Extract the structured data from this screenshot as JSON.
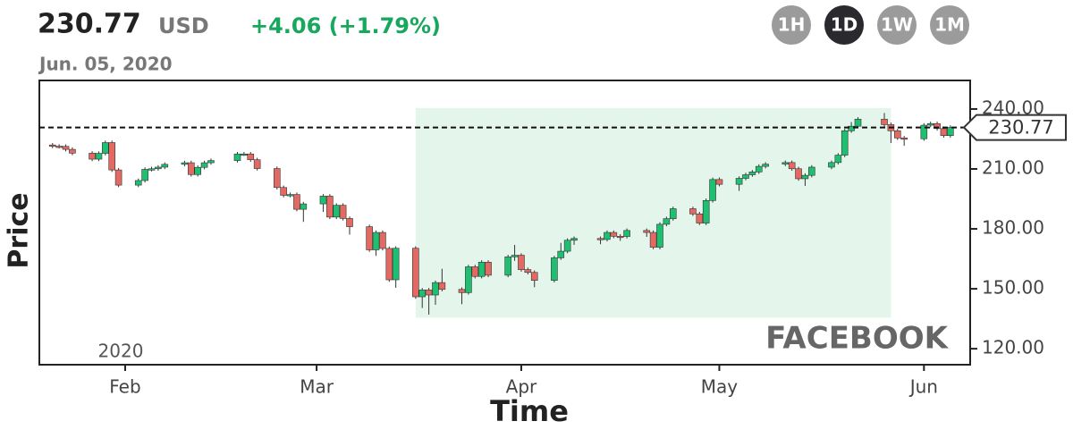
{
  "header": {
    "price": "230.77",
    "currency": "USD",
    "change": "+4.06 (+1.79%)",
    "date": "Jun. 05, 2020"
  },
  "range_buttons": [
    "1H",
    "1D",
    "1W",
    "1M"
  ],
  "active_range": "1D",
  "chart_data": {
    "type": "candlestick",
    "x_title": "Time",
    "y_title": "Price",
    "watermark": "FACEBOOK",
    "year_label": "2020",
    "up_color": "#1fbf72",
    "down_color": "#e36a62",
    "highlight_color": "#e4f5ec",
    "xlim": [
      "2020-01-19",
      "2020-06-08"
    ],
    "ylim": [
      112,
      254.3
    ],
    "xticks": [
      {
        "value": "2020-02-01",
        "label": "Feb"
      },
      {
        "value": "2020-03-01",
        "label": "Mar"
      },
      {
        "value": "2020-04-01",
        "label": "Apr"
      },
      {
        "value": "2020-05-01",
        "label": "May"
      },
      {
        "value": "2020-06-01",
        "label": "Jun"
      }
    ],
    "yticks": [
      {
        "value": 120,
        "label": "120.00"
      },
      {
        "value": 150,
        "label": "150.00"
      },
      {
        "value": 180,
        "label": "180.00"
      },
      {
        "value": 210,
        "label": "210.00"
      },
      {
        "value": 240,
        "label": "240.00"
      }
    ],
    "highlight": {
      "x": [
        "2020-03-16",
        "2020-05-27"
      ],
      "y": [
        135.5,
        240.5
      ]
    },
    "reference_line": {
      "value": 230.77,
      "label": "230.77"
    },
    "x": [
      "2020-01-21",
      "2020-01-22",
      "2020-01-23",
      "2020-01-24",
      "2020-01-27",
      "2020-01-28",
      "2020-01-29",
      "2020-01-30",
      "2020-01-31",
      "2020-02-03",
      "2020-02-04",
      "2020-02-05",
      "2020-02-06",
      "2020-02-07",
      "2020-02-10",
      "2020-02-11",
      "2020-02-12",
      "2020-02-13",
      "2020-02-14",
      "2020-02-18",
      "2020-02-19",
      "2020-02-20",
      "2020-02-21",
      "2020-02-24",
      "2020-02-25",
      "2020-02-26",
      "2020-02-27",
      "2020-02-28",
      "2020-03-02",
      "2020-03-03",
      "2020-03-04",
      "2020-03-05",
      "2020-03-06",
      "2020-03-09",
      "2020-03-10",
      "2020-03-11",
      "2020-03-12",
      "2020-03-13",
      "2020-03-16",
      "2020-03-17",
      "2020-03-18",
      "2020-03-19",
      "2020-03-20",
      "2020-03-23",
      "2020-03-24",
      "2020-03-25",
      "2020-03-26",
      "2020-03-27",
      "2020-03-30",
      "2020-03-31",
      "2020-04-01",
      "2020-04-02",
      "2020-04-03",
      "2020-04-06",
      "2020-04-07",
      "2020-04-08",
      "2020-04-09",
      "2020-04-13",
      "2020-04-14",
      "2020-04-15",
      "2020-04-16",
      "2020-04-17",
      "2020-04-20",
      "2020-04-21",
      "2020-04-22",
      "2020-04-23",
      "2020-04-24",
      "2020-04-27",
      "2020-04-28",
      "2020-04-29",
      "2020-04-30",
      "2020-05-01",
      "2020-05-04",
      "2020-05-05",
      "2020-05-06",
      "2020-05-07",
      "2020-05-08",
      "2020-05-11",
      "2020-05-12",
      "2020-05-13",
      "2020-05-14",
      "2020-05-15",
      "2020-05-18",
      "2020-05-19",
      "2020-05-20",
      "2020-05-21",
      "2020-05-22",
      "2020-05-26",
      "2020-05-27",
      "2020-05-28",
      "2020-05-29",
      "2020-06-01",
      "2020-06-02",
      "2020-06-03",
      "2020-06-04",
      "2020-06-05"
    ],
    "open": [
      222.0,
      221.4,
      221.3,
      219.8,
      217.9,
      214.9,
      217.8,
      223.2,
      209.5,
      201.9,
      204.2,
      209.8,
      210.1,
      210.9,
      212.3,
      213.1,
      207.2,
      210.8,
      213.1,
      214.2,
      217.5,
      217.5,
      214.6,
      210.2,
      200.7,
      196.8,
      197.2,
      189.8,
      192.5,
      196.4,
      185.9,
      191.8,
      185.2,
      181.1,
      169.5,
      178.2,
      170.2,
      154.5,
      170.3,
      146.0,
      149.4,
      146.9,
      153.1,
      149.7,
      148.1,
      161.0,
      156.2,
      163.3,
      156.8,
      166.0,
      166.8,
      159.6,
      158.2,
      154.2,
      165.5,
      168.8,
      174.3,
      175.2,
      174.7,
      178.2,
      176.3,
      176.2,
      179.2,
      178.2,
      170.8,
      182.3,
      185.1,
      190.1,
      187.5,
      182.9,
      194.2,
      204.7,
      202.3,
      205.3,
      207.1,
      208.5,
      211.3,
      212.4,
      213.2,
      210.1,
      205.1,
      206.8,
      210.9,
      213.2,
      216.9,
      229.1,
      231.4,
      234.9,
      232.2,
      229.1,
      225.5,
      225.1,
      231.9,
      232.7,
      230.2,
      226.7
    ],
    "high": [
      223.0,
      222.4,
      222.3,
      220.8,
      218.9,
      218.8,
      224.2,
      224.2,
      210.5,
      205.2,
      210.8,
      211.1,
      211.9,
      213.3,
      214.1,
      214.1,
      211.8,
      214.1,
      215.2,
      218.5,
      218.5,
      218.5,
      215.6,
      211.2,
      201.7,
      198.2,
      198.2,
      193.5,
      197.4,
      197.4,
      192.8,
      192.8,
      186.2,
      182.1,
      179.2,
      179.2,
      171.2,
      171.3,
      171.3,
      150.4,
      150.4,
      154.1,
      160.0,
      150.7,
      162.0,
      162.0,
      164.3,
      164.3,
      167.0,
      172.0,
      167.8,
      160.6,
      159.2,
      166.5,
      173.0,
      175.3,
      176.2,
      176.2,
      179.2,
      179.2,
      177.3,
      180.2,
      180.2,
      179.2,
      183.3,
      186.1,
      191.1,
      191.1,
      188.5,
      195.2,
      205.7,
      205.7,
      206.3,
      208.1,
      209.5,
      212.3,
      213.4,
      214.2,
      214.2,
      211.1,
      207.8,
      211.9,
      214.2,
      217.9,
      230.1,
      233.5,
      235.9,
      238.0,
      233.2,
      230.1,
      226.5,
      232.9,
      233.7,
      233.7,
      231.2,
      231.8
    ],
    "low": [
      220.4,
      220.3,
      218.8,
      216.9,
      213.9,
      213.9,
      216.8,
      208.5,
      200.9,
      200.9,
      203.2,
      208.8,
      209.1,
      209.9,
      211.3,
      206.2,
      206.2,
      209.8,
      212.1,
      213.2,
      216.5,
      213.6,
      209.2,
      199.7,
      195.8,
      195.8,
      188.8,
      183.5,
      188.5,
      184.9,
      184.9,
      184.2,
      177.1,
      168.5,
      166.5,
      169.2,
      153.5,
      150.5,
      145.0,
      140.4,
      137.1,
      142.0,
      148.7,
      142.3,
      147.1,
      155.2,
      155.2,
      155.8,
      155.8,
      164.0,
      158.6,
      157.2,
      150.8,
      153.2,
      164.5,
      167.8,
      172.0,
      172.3,
      173.7,
      175.3,
      174.0,
      175.2,
      176.0,
      169.8,
      169.8,
      181.3,
      184.1,
      186.5,
      181.9,
      181.9,
      193.2,
      201.3,
      199.0,
      204.3,
      206.1,
      207.5,
      210.3,
      211.4,
      209.1,
      204.1,
      201.5,
      205.8,
      209.9,
      212.2,
      215.9,
      228.1,
      230.4,
      231.2,
      223.0,
      224.5,
      221.6,
      224.1,
      230.9,
      229.2,
      225.7,
      225.7
    ],
    "close": [
      221.4,
      221.3,
      219.8,
      217.9,
      214.9,
      217.8,
      223.2,
      209.5,
      201.9,
      204.2,
      209.8,
      210.1,
      210.9,
      212.3,
      213.1,
      207.2,
      210.8,
      213.1,
      214.2,
      217.5,
      217.5,
      214.6,
      210.2,
      200.7,
      196.8,
      197.2,
      189.8,
      192.5,
      196.4,
      185.9,
      191.8,
      185.2,
      181.1,
      169.5,
      178.2,
      170.2,
      154.5,
      170.3,
      146.0,
      149.4,
      146.9,
      153.1,
      149.7,
      148.1,
      161.0,
      156.2,
      163.3,
      156.8,
      166.0,
      166.8,
      159.6,
      158.2,
      154.2,
      165.5,
      168.8,
      174.3,
      175.2,
      174.7,
      178.2,
      176.3,
      176.2,
      179.2,
      178.2,
      170.8,
      182.3,
      185.1,
      190.1,
      187.5,
      182.9,
      194.2,
      204.7,
      202.3,
      205.3,
      207.1,
      208.5,
      211.3,
      212.4,
      213.2,
      210.1,
      205.1,
      206.8,
      210.9,
      213.2,
      216.9,
      229.1,
      231.4,
      234.9,
      232.2,
      229.1,
      225.5,
      225.1,
      231.9,
      232.7,
      230.2,
      226.7,
      230.77
    ]
  }
}
